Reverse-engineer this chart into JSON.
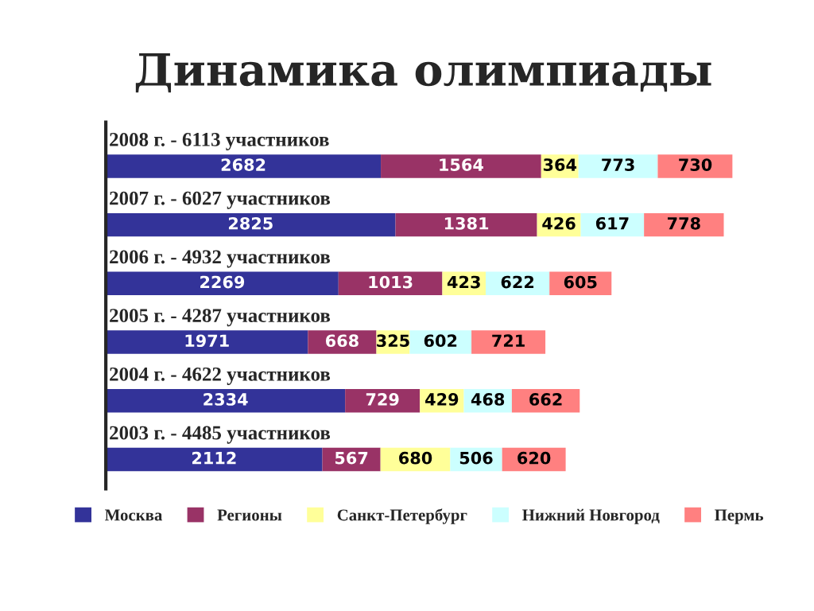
{
  "chart_data": {
    "type": "bar",
    "orientation": "horizontal",
    "stacked": true,
    "title": "Динамика олимпиады",
    "categories": [
      "2008 г. - 6113 участников",
      "2007 г. - 6027 участников",
      "2006 г. - 4932 участников",
      "2005 г. - 4287 участников",
      "2004 г. - 4622 участников",
      "2003 г. - 4485 участников"
    ],
    "series": [
      {
        "name": "Москва",
        "color": "#333399",
        "values": [
          2682,
          2825,
          2269,
          1971,
          2334,
          2112
        ]
      },
      {
        "name": "Регионы",
        "color": "#993366",
        "values": [
          1564,
          1381,
          1013,
          668,
          729,
          567
        ]
      },
      {
        "name": "Санкт-Петербург",
        "color": "#ffff99",
        "values": [
          364,
          426,
          423,
          325,
          429,
          680
        ]
      },
      {
        "name": "Нижний Новгород",
        "color": "#ccffff",
        "values": [
          773,
          617,
          622,
          602,
          468,
          506
        ]
      },
      {
        "name": "Пермь",
        "color": "#ff8080",
        "values": [
          730,
          778,
          605,
          721,
          662,
          620
        ]
      }
    ],
    "data_labels": true,
    "legend": "bottom"
  }
}
